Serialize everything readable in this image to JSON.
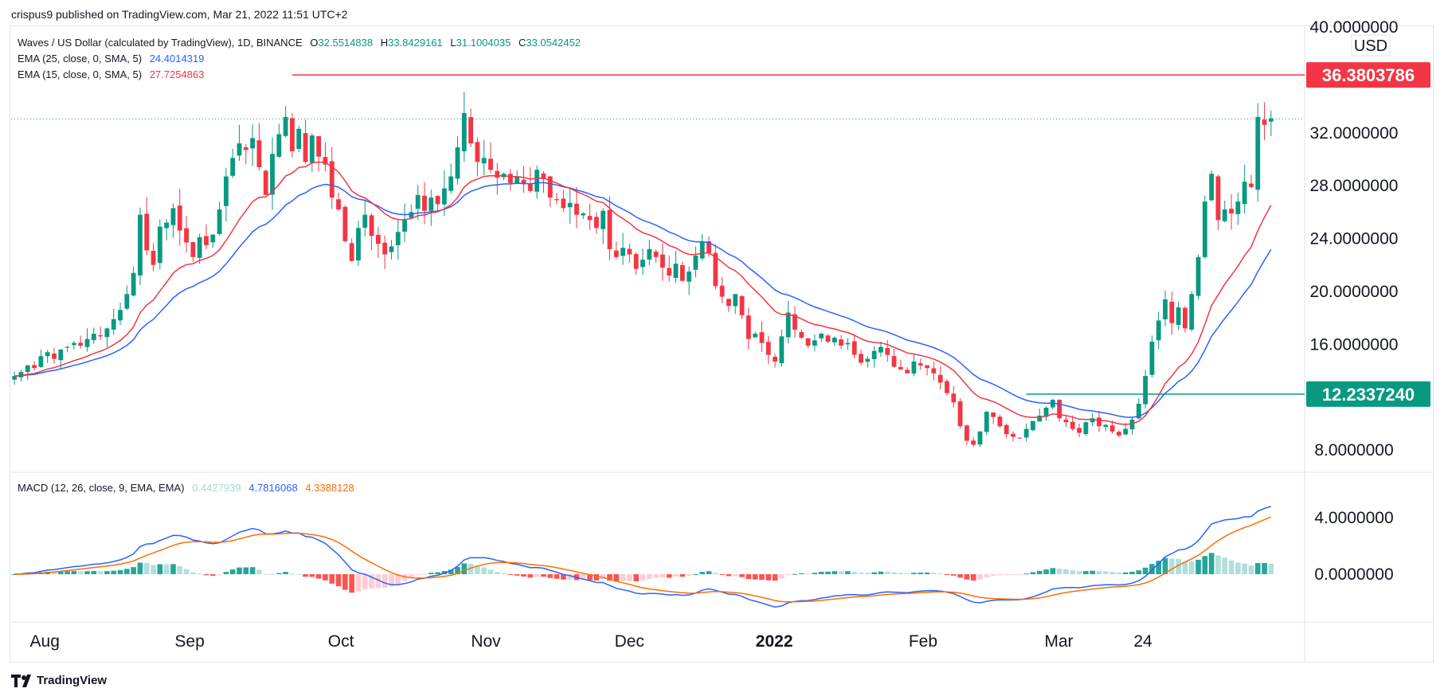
{
  "header": {
    "publisher_text": "crispus9 published on TradingView.com, Mar 21, 2022 11:51 UTC+2"
  },
  "legend": {
    "symbol": "Waves / US Dollar (calculated by TradingView), 1D, BINANCE",
    "ohlc": {
      "o_label": "O",
      "o": "32.5514838",
      "h_label": "H",
      "h": "33.8429161",
      "l_label": "L",
      "l": "31.1004035",
      "c_label": "C",
      "c": "33.0542452"
    },
    "ema25": {
      "label": "EMA (25, close, 0, SMA, 5)",
      "value": "24.4014319"
    },
    "ema15": {
      "label": "EMA (15, close, 0, SMA, 5)",
      "value": "27.7254863"
    },
    "macd": {
      "label": "MACD (12, 26, close, 9, EMA, EMA)",
      "hist": "0.4427939",
      "macd": "4.7816068",
      "signal": "4.3388128"
    }
  },
  "price_axis": {
    "currency": "USD",
    "ticks": [
      "40.0000000",
      "32.0000000",
      "28.0000000",
      "24.0000000",
      "20.0000000",
      "16.0000000",
      "8.0000000"
    ],
    "resistance_label": "36.3803786",
    "support_label": "12.2337240"
  },
  "macd_axis": {
    "ticks": [
      "4.0000000",
      "0.0000000"
    ]
  },
  "time_axis": {
    "labels": [
      "Aug",
      "Sep",
      "Oct",
      "Nov",
      "Dec",
      "2022",
      "Feb",
      "Mar",
      "24"
    ]
  },
  "footer": {
    "brand": "TradingView"
  },
  "colors": {
    "up": "#089981",
    "down": "#f23645",
    "ema25": "#2962ff",
    "ema15": "#f23645",
    "signal": "#ff6d00",
    "hist_up": "#26a69a",
    "hist_up_light": "#b2dfdb",
    "hist_down": "#ff5252",
    "hist_down_light": "#ffcdd2"
  },
  "chart_data": {
    "type": "candlestick",
    "symbol": "WAVES/USD",
    "interval": "1D",
    "date_range": [
      "2021-07-25",
      "2022-03-21"
    ],
    "ylim": [
      6.5,
      40
    ],
    "candles_close": [
      13.6,
      13.9,
      14.4,
      14.2,
      15.1,
      15.4,
      14.9,
      15.6,
      15.8,
      16.1,
      15.9,
      16.4,
      16.8,
      16.6,
      17.2,
      17.9,
      18.6,
      19.8,
      21.4,
      25.8,
      23.1,
      22.0,
      24.9,
      25.2,
      26.3,
      24.6,
      23.7,
      22.6,
      24.1,
      23.5,
      24.3,
      26.2,
      28.7,
      30.1,
      31.2,
      30.7,
      31.6,
      29.4,
      27.3,
      30.4,
      31.9,
      33.2,
      30.6,
      32.3,
      29.8,
      31.8,
      30.2,
      29.6,
      27.1,
      26.2,
      23.8,
      22.3,
      24.8,
      25.8,
      24.2,
      23.6,
      22.8,
      23.4,
      24.5,
      25.4,
      26.0,
      27.3,
      26.1,
      27.1,
      26.6,
      27.8,
      28.7,
      30.9,
      33.5,
      31.2,
      29.8,
      30.1,
      29.2,
      28.6,
      28.9,
      28.2,
      28.7,
      28.1,
      27.6,
      29.2,
      28.5,
      27.1,
      26.9,
      26.3,
      26.7,
      25.8,
      25.9,
      25.4,
      24.8,
      26.1,
      23.2,
      22.6,
      23.3,
      22.8,
      21.7,
      22.4,
      23.2,
      22.6,
      21.8,
      21.2,
      22.1,
      20.8,
      21.5,
      22.7,
      23.8,
      22.9,
      20.4,
      19.6,
      18.9,
      19.8,
      18.2,
      16.4,
      16.8,
      16.1,
      15.2,
      14.7,
      16.6,
      18.4,
      17.1,
      16.5,
      15.9,
      16.3,
      16.8,
      16.2,
      16.5,
      15.9,
      16.1,
      15.2,
      14.6,
      14.9,
      15.5,
      15.8,
      15.2,
      14.3,
      14.1,
      13.8,
      14.7,
      14.4,
      14.2,
      13.8,
      13.1,
      12.3,
      11.6,
      9.8,
      8.7,
      8.4,
      9.4,
      10.9,
      10.5,
      9.8,
      9.2,
      9.0,
      8.9,
      9.6,
      10.2,
      10.6,
      11.2,
      11.8,
      10.4,
      10.1,
      9.6,
      9.3,
      10.1,
      10.4,
      9.8,
      9.9,
      9.4,
      9.1,
      9.6,
      10.3,
      11.5,
      13.6,
      16.2,
      17.8,
      19.4,
      17.6,
      18.8,
      17.2,
      19.8,
      22.6,
      26.8,
      28.9,
      25.4,
      26.2,
      25.9,
      26.8,
      28.3,
      27.9,
      33.2,
      32.6,
      33.1
    ],
    "ema25_last": 24.4014319,
    "ema15_last": 27.7254863,
    "resistance": 36.3803786,
    "support": 12.233724,
    "last_price": 33.0542452,
    "macd": {
      "macd_last": 4.7816068,
      "signal_last": 4.3388128,
      "hist_last": 0.4427939,
      "ylim": [
        -3.2,
        6.8
      ]
    }
  }
}
